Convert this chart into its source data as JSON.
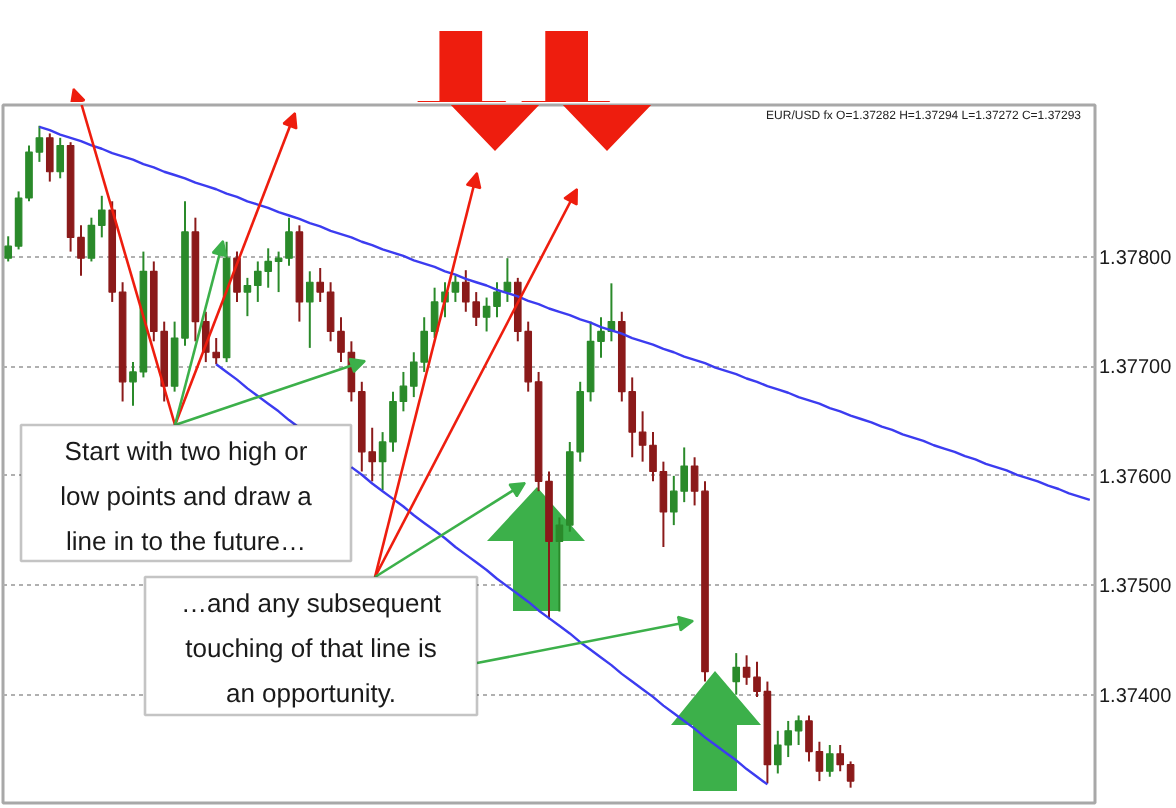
{
  "chart_data": {
    "type": "candlestick",
    "categories": [
      null,
      null,
      null,
      null,
      null,
      null,
      null,
      null,
      null,
      null,
      null,
      null,
      null,
      null,
      null,
      null,
      null,
      null,
      null,
      null,
      null,
      null,
      null,
      null,
      null,
      null,
      null,
      null,
      null,
      null,
      null,
      null,
      null,
      null,
      null,
      null,
      null,
      null,
      null,
      null,
      null,
      null,
      null,
      null,
      null,
      null,
      null,
      null,
      null,
      null,
      null,
      null,
      null,
      null,
      null,
      null,
      null,
      null,
      null,
      null,
      null,
      null,
      null,
      null,
      null,
      null,
      null,
      null,
      null,
      null,
      null,
      null,
      null,
      null,
      null,
      null,
      null,
      null,
      null,
      null,
      null,
      null,
      null,
      null,
      null,
      null,
      null,
      null,
      null,
      null,
      null,
      null,
      null,
      null,
      null,
      null,
      null,
      null,
      null,
      null,
      null,
      null,
      null,
      null,
      null
    ],
    "ohlc": [
      [
        1.37799,
        1.37819,
        1.37796,
        1.3781
      ],
      [
        1.3781,
        1.3786,
        1.37807,
        1.37854
      ],
      [
        1.37854,
        1.37902,
        1.37851,
        1.37896
      ],
      [
        1.37896,
        1.3792,
        1.37887,
        1.37909
      ],
      [
        1.37909,
        1.37913,
        1.37869,
        1.37878
      ],
      [
        1.37878,
        1.37909,
        1.37872,
        1.37902
      ],
      [
        1.37902,
        1.37905,
        1.37805,
        1.37818
      ],
      [
        1.37818,
        1.37829,
        1.37783,
        1.37799
      ],
      [
        1.37799,
        1.37836,
        1.37796,
        1.37829
      ],
      [
        1.37829,
        1.37856,
        1.37818,
        1.37843
      ],
      [
        1.37843,
        1.37851,
        1.37759,
        1.37768
      ],
      [
        1.37768,
        1.37777,
        1.37668,
        1.37686
      ],
      [
        1.37686,
        1.37704,
        1.37664,
        1.37695
      ],
      [
        1.37695,
        1.37805,
        1.3769,
        1.37787
      ],
      [
        1.37787,
        1.37796,
        1.37723,
        1.37732
      ],
      [
        1.37732,
        1.37741,
        1.37668,
        1.37682
      ],
      [
        1.37682,
        1.37741,
        1.37677,
        1.37726
      ],
      [
        1.37726,
        1.37851,
        1.37719,
        1.37823
      ],
      [
        1.37823,
        1.37836,
        1.37723,
        1.37741
      ],
      [
        1.37741,
        1.3775,
        1.37704,
        1.37713
      ],
      [
        1.37713,
        1.37726,
        1.37702,
        1.37708
      ],
      [
        1.37708,
        1.37814,
        1.37704,
        1.37799
      ],
      [
        1.37799,
        1.37805,
        1.37759,
        1.37768
      ],
      [
        1.37768,
        1.37781,
        1.37746,
        1.37774
      ],
      [
        1.37774,
        1.37796,
        1.37759,
        1.37787
      ],
      [
        1.37787,
        1.37808,
        1.37772,
        1.37796
      ],
      [
        1.37796,
        1.37805,
        1.37768,
        1.37799
      ],
      [
        1.37799,
        1.37836,
        1.37792,
        1.37823
      ],
      [
        1.37823,
        1.37829,
        1.37741,
        1.37759
      ],
      [
        1.37759,
        1.37787,
        1.37717,
        1.37777
      ],
      [
        1.37777,
        1.3779,
        1.37759,
        1.37768
      ],
      [
        1.37768,
        1.37777,
        1.37723,
        1.37732
      ],
      [
        1.37732,
        1.37745,
        1.37704,
        1.37713
      ],
      [
        1.37713,
        1.37723,
        1.37668,
        1.37677
      ],
      [
        1.37677,
        1.37686,
        1.37604,
        1.37622
      ],
      [
        1.37622,
        1.37644,
        1.37595,
        1.37613
      ],
      [
        1.37613,
        1.3764,
        1.37587,
        1.37631
      ],
      [
        1.37631,
        1.37677,
        1.37622,
        1.37668
      ],
      [
        1.37668,
        1.37695,
        1.37659,
        1.37682
      ],
      [
        1.37682,
        1.37713,
        1.37672,
        1.37704
      ],
      [
        1.37704,
        1.37745,
        1.37695,
        1.37732
      ],
      [
        1.37732,
        1.37772,
        1.37726,
        1.37759
      ],
      [
        1.37759,
        1.37777,
        1.37745,
        1.37768
      ],
      [
        1.37768,
        1.37783,
        1.37759,
        1.37777
      ],
      [
        1.37777,
        1.37788,
        1.3775,
        1.37759
      ],
      [
        1.37759,
        1.37768,
        1.37737,
        1.37745
      ],
      [
        1.37745,
        1.37763,
        1.37732,
        1.37755
      ],
      [
        1.37755,
        1.37777,
        1.37745,
        1.37768
      ],
      [
        1.37768,
        1.37799,
        1.37759,
        1.37777
      ],
      [
        1.37777,
        1.37781,
        1.37723,
        1.37732
      ],
      [
        1.37732,
        1.37741,
        1.37677,
        1.37686
      ],
      [
        1.37686,
        1.37695,
        1.37586,
        1.37595
      ],
      [
        1.37595,
        1.37604,
        1.37469,
        1.3754
      ],
      [
        1.3754,
        1.37562,
        1.37476,
        1.37555
      ],
      [
        1.37555,
        1.37631,
        1.37549,
        1.37622
      ],
      [
        1.37622,
        1.37686,
        1.37613,
        1.37677
      ],
      [
        1.37677,
        1.37741,
        1.37668,
        1.37723
      ],
      [
        1.37723,
        1.37745,
        1.37708,
        1.37732
      ],
      [
        1.37732,
        1.37776,
        1.37723,
        1.37741
      ],
      [
        1.37741,
        1.3775,
        1.37668,
        1.37677
      ],
      [
        1.37677,
        1.3769,
        1.37617,
        1.3764
      ],
      [
        1.3764,
        1.37659,
        1.37613,
        1.37628
      ],
      [
        1.37628,
        1.3764,
        1.37595,
        1.37604
      ],
      [
        1.37604,
        1.37613,
        1.37535,
        1.37567
      ],
      [
        1.37567,
        1.376,
        1.37555,
        1.37586
      ],
      [
        1.37586,
        1.37626,
        1.37576,
        1.37609
      ],
      [
        1.37609,
        1.37617,
        1.37573,
        1.37586
      ],
      [
        1.37586,
        1.37595,
        1.37412,
        1.37421
      ],
      null,
      null,
      [
        1.37412,
        1.37438,
        1.374,
        1.37425
      ],
      [
        1.37425,
        1.37436,
        1.37409,
        1.37416
      ],
      [
        1.37416,
        1.3743,
        1.37398,
        1.37403
      ],
      [
        1.37403,
        1.37412,
        1.37319,
        1.37336
      ],
      [
        1.37336,
        1.37367,
        1.37328,
        1.37354
      ],
      [
        1.37354,
        1.37376,
        1.37343,
        1.37367
      ],
      [
        1.37367,
        1.37381,
        1.37354,
        1.37376
      ],
      [
        1.37376,
        1.37381,
        1.37339,
        1.37348
      ],
      [
        1.37348,
        1.37357,
        1.37321,
        1.3733
      ],
      [
        1.3733,
        1.37354,
        1.37325,
        1.37346
      ],
      [
        1.37346,
        1.37354,
        1.3733,
        1.37336
      ],
      [
        1.37336,
        1.37339,
        1.37315,
        1.37321
      ],
      null,
      null,
      null,
      null,
      null,
      null,
      null,
      null,
      null,
      null,
      null,
      null,
      null,
      null,
      null,
      null,
      null,
      null,
      null,
      null,
      null,
      null,
      null
    ],
    "colors": [
      "#2a8a2a",
      "#2a8a2a",
      "#2a8a2a",
      "#2a8a2a",
      "#8b1a1a",
      "#2a8a2a",
      "#8b1a1a",
      "#8b1a1a",
      "#2a8a2a",
      "#2a8a2a",
      "#8b1a1a",
      "#8b1a1a",
      "#2a8a2a",
      "#2a8a2a",
      "#8b1a1a",
      "#8b1a1a",
      "#2a8a2a",
      "#2a8a2a",
      "#8b1a1a",
      "#8b1a1a",
      "#8b1a1a",
      "#2a8a2a",
      "#8b1a1a",
      "#2a8a2a",
      "#2a8a2a",
      "#2a8a2a",
      "#2a8a2a",
      "#2a8a2a",
      "#8b1a1a",
      "#2a8a2a",
      "#8b1a1a",
      "#8b1a1a",
      "#8b1a1a",
      "#8b1a1a",
      "#8b1a1a",
      "#8b1a1a",
      "#2a8a2a",
      "#2a8a2a",
      "#2a8a2a",
      "#2a8a2a",
      "#2a8a2a",
      "#2a8a2a",
      "#2a8a2a",
      "#2a8a2a",
      "#8b1a1a",
      "#8b1a1a",
      "#2a8a2a",
      "#2a8a2a",
      "#2a8a2a",
      "#8b1a1a",
      "#8b1a1a",
      "#8b1a1a",
      "#8b1a1a",
      "#2a8a2a",
      "#2a8a2a",
      "#2a8a2a",
      "#2a8a2a",
      "#2a8a2a",
      "#2a8a2a",
      "#8b1a1a",
      "#8b1a1a",
      "#8b1a1a",
      "#8b1a1a",
      "#8b1a1a",
      "#2a8a2a",
      "#2a8a2a",
      "#8b1a1a",
      "#8b1a1a",
      null,
      null,
      "#2a8a2a",
      "#8b1a1a",
      "#8b1a1a",
      "#8b1a1a",
      "#2a8a2a",
      "#2a8a2a",
      "#2a8a2a",
      "#8b1a1a",
      "#8b1a1a",
      "#2a8a2a",
      "#8b1a1a",
      "#8b1a1a",
      null,
      null,
      null,
      null,
      null,
      null,
      null,
      null,
      null,
      null,
      null,
      null,
      null,
      null,
      null,
      null,
      null,
      null,
      null,
      null,
      null,
      null,
      null
    ],
    "series": [
      {
        "type": "line",
        "color": "#3c3cf0",
        "values": [
          null,
          null,
          null,
          1.37919,
          1.37916,
          1.37912,
          1.37909,
          1.37906,
          1.37902,
          1.37899,
          1.37895,
          1.37892,
          1.37889,
          1.37885,
          1.37882,
          1.37878,
          1.37875,
          1.37872,
          1.37868,
          1.37865,
          1.37862,
          1.37858,
          1.37855,
          1.37851,
          1.37848,
          1.37845,
          1.37841,
          1.37838,
          1.37835,
          1.37831,
          1.37828,
          1.37824,
          1.37821,
          1.37818,
          1.37814,
          1.37811,
          1.37807,
          1.37804,
          1.37801,
          1.37797,
          1.37794,
          1.37791,
          1.37787,
          1.37784,
          1.3778,
          1.37777,
          1.37774,
          1.3777,
          1.37767,
          1.37764,
          1.3776,
          1.37757,
          1.37753,
          1.3775,
          1.37747,
          1.37743,
          1.3774,
          1.37736,
          1.37733,
          1.3773,
          1.37726,
          1.37723,
          1.3772,
          1.37716,
          1.37713,
          1.37709,
          1.37706,
          1.37703,
          1.37699,
          1.37696,
          1.37693,
          1.37689,
          1.37686,
          1.37682,
          1.37679,
          1.37676,
          1.37672,
          1.37669,
          1.37666,
          1.37662,
          1.37659,
          1.37655,
          1.37652,
          1.37649,
          1.37645,
          1.37642,
          1.37638,
          1.37635,
          1.37632,
          1.37628,
          1.37625,
          1.37622,
          1.37618,
          1.37615,
          1.37611,
          1.37608,
          1.37605,
          1.37601,
          1.37598,
          1.37595,
          1.37591,
          1.37588,
          1.37584,
          1.37581,
          1.37578
        ]
      },
      {
        "type": "line",
        "color": "#3c3cf0",
        "values": [
          null,
          null,
          null,
          null,
          null,
          null,
          null,
          null,
          null,
          null,
          null,
          null,
          null,
          null,
          null,
          null,
          null,
          null,
          null,
          null,
          1.37702,
          1.37695,
          1.37688,
          1.3768,
          1.37673,
          1.37666,
          1.37659,
          1.37651,
          1.37644,
          null,
          null,
          null,
          null,
          1.37608,
          1.37601,
          1.37593,
          1.37586,
          1.37579,
          1.37572,
          1.37564,
          1.37557,
          1.3755,
          1.37543,
          1.37535,
          1.37528,
          1.37521,
          1.37514,
          1.37506,
          1.37499,
          1.37492,
          1.37485,
          1.37477,
          1.3747,
          1.37463,
          1.37456,
          1.37448,
          1.37441,
          1.37434,
          1.37427,
          1.37419,
          1.37412,
          1.37405,
          1.37398,
          1.3739,
          1.37383,
          1.37376,
          1.37369,
          1.37361,
          1.37354,
          1.37347,
          1.3734,
          1.37332,
          1.37325,
          1.37318,
          null,
          null,
          null,
          null,
          null,
          null,
          null,
          null,
          null,
          null,
          null,
          null,
          null,
          null,
          null,
          null,
          null,
          null,
          null,
          null,
          null,
          null,
          null,
          null,
          null,
          null,
          null,
          null,
          null,
          null,
          null
        ]
      }
    ],
    "ylim": [
      1.37301,
      1.37939
    ],
    "yticks": [
      {
        "value": 1.374,
        "label": "1.37400"
      },
      {
        "value": 1.375,
        "label": "1.37500"
      },
      {
        "value": 1.376,
        "label": "1.37600"
      },
      {
        "value": 1.377,
        "label": "1.37700"
      },
      {
        "value": 1.378,
        "label": "1.37800"
      }
    ],
    "grid": "y",
    "tick_labels": "y",
    "annotations": [
      "EUR/USD fx O=1.37282 H=1.37294 L=1.37272 C=1.37293",
      "Start with two high or\nlow points and draw a\nline in to the future…",
      "…and any subsequent\ntouching of that line is\nan opportunity."
    ]
  }
}
